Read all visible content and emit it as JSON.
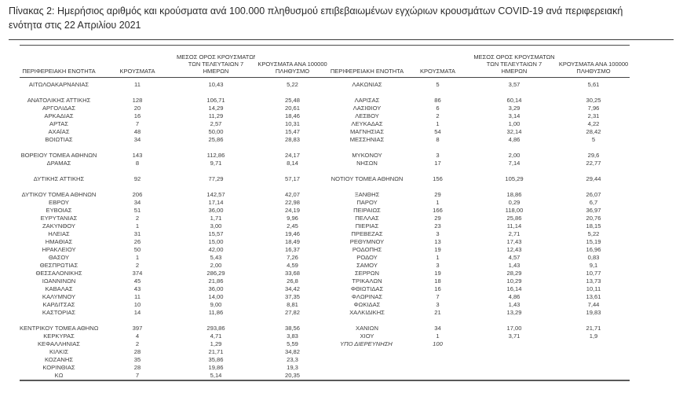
{
  "title": {
    "line1": "Πίνακας 2: Ημερήσιος αριθμός και κρούσματα ανά 100.000 πληθυσμού επιβεβαιωμένων εγχώριων κρουσμάτων COVID-19 ανά περιφερειακή",
    "line2": "ενότητα στις 22 Απριλίου 2021"
  },
  "table": {
    "columns": {
      "region": "ΠΕΡΙΦΕΡΕΙΑΚΗ ΕΝΟΤΗΤΑ",
      "cases": "ΚΡΟΥΣΜΑΤΑ",
      "avg7": [
        "ΜΕΣΟΣ ΟΡΟΣ ΚΡΟΥΣΜΑΤΩΝ",
        "ΤΩΝ ΤΕΛΕΥΤΑΙΩΝ 7",
        "ΗΜΕΡΩΝ"
      ],
      "per100k": [
        "ΚΡΟΥΣΜΑΤΑ ΑΝΑ 100000",
        "ΠΛΗΘΥΣΜΟ"
      ]
    },
    "rows": [
      {
        "left": [
          "ΑΙΤΩΛΟΑΚΑΡΝΑΝΙΑΣ",
          "11",
          "10,43",
          "5,22"
        ],
        "right": [
          "ΛΑΚΩΝΙΑΣ",
          "5",
          "3,57",
          "5,61"
        ]
      },
      {
        "left": [],
        "right": []
      },
      {
        "left": [
          "ΑΝΑΤΟΛΙΚΗΣ ΑΤΤΙΚΗΣ",
          "128",
          "106,71",
          "25,48"
        ],
        "right": [
          "ΛΑΡΙΣΑΣ",
          "86",
          "60,14",
          "30,25"
        ]
      },
      {
        "left": [
          "ΑΡΓΟΛΙΔΑΣ",
          "20",
          "14,29",
          "20,61"
        ],
        "right": [
          "ΛΑΣΙΘΙΟΥ",
          "6",
          "3,29",
          "7,96"
        ]
      },
      {
        "left": [
          "ΑΡΚΑΔΙΑΣ",
          "16",
          "11,29",
          "18,46"
        ],
        "right": [
          "ΛΕΣΒΟΥ",
          "2",
          "3,14",
          "2,31"
        ]
      },
      {
        "left": [
          "ΑΡΤΑΣ",
          "7",
          "2,57",
          "10,31"
        ],
        "right": [
          "ΛΕΥΚΑΔΑΣ",
          "1",
          "1,00",
          "4,22"
        ]
      },
      {
        "left": [
          "ΑΧΑΪΑΣ",
          "48",
          "50,00",
          "15,47"
        ],
        "right": [
          "ΜΑΓΝΗΣΙΑΣ",
          "54",
          "32,14",
          "28,42"
        ]
      },
      {
        "left": [
          "ΒΟΙΩΤΙΑΣ",
          "34",
          "25,86",
          "28,83"
        ],
        "right": [
          "ΜΕΣΣΗΝΙΑΣ",
          "8",
          "4,86",
          "5"
        ]
      },
      {
        "left": [],
        "right": []
      },
      {
        "left": [
          "ΒΟΡΕΙΟΥ ΤΟΜΕΑ ΑΘΗΝΩΝ",
          "143",
          "112,86",
          "24,17"
        ],
        "right": [
          "ΜΥΚΟΝΟΥ",
          "3",
          "2,00",
          "29,6"
        ]
      },
      {
        "left": [
          "ΔΡΑΜΑΣ",
          "8",
          "9,71",
          "8,14"
        ],
        "right": [
          "ΝΗΣΩΝ",
          "17",
          "7,14",
          "22,77"
        ]
      },
      {
        "left": [],
        "right": []
      },
      {
        "left": [
          "ΔΥΤΙΚΗΣ ΑΤΤΙΚΗΣ",
          "92",
          "77,29",
          "57,17"
        ],
        "right": [
          "ΝΟΤΙΟΥ ΤΟΜΕΑ ΑΘΗΝΩΝ",
          "156",
          "105,29",
          "29,44"
        ]
      },
      {
        "left": [],
        "right": []
      },
      {
        "left": [
          "ΔΥΤΙΚΟΥ ΤΟΜΕΑ ΑΘΗΝΩΝ",
          "206",
          "142,57",
          "42,07"
        ],
        "right": [
          "ΞΑΝΘΗΣ",
          "29",
          "18,86",
          "26,07"
        ]
      },
      {
        "left": [
          "ΕΒΡΟΥ",
          "34",
          "17,14",
          "22,98"
        ],
        "right": [
          "ΠΑΡΟΥ",
          "1",
          "0,29",
          "6,7"
        ]
      },
      {
        "left": [
          "ΕΥΒΟΙΑΣ",
          "51",
          "36,00",
          "24,19"
        ],
        "right": [
          "ΠΕΙΡΑΙΩΣ",
          "166",
          "118,00",
          "36,97"
        ]
      },
      {
        "left": [
          "ΕΥΡΥΤΑΝΙΑΣ",
          "2",
          "1,71",
          "9,96"
        ],
        "right": [
          "ΠΕΛΛΑΣ",
          "29",
          "25,86",
          "20,76"
        ]
      },
      {
        "left": [
          "ΖΑΚΥΝΘΟΥ",
          "1",
          "3,00",
          "2,45"
        ],
        "right": [
          "ΠΙΕΡΙΑΣ",
          "23",
          "11,14",
          "18,15"
        ]
      },
      {
        "left": [
          "ΗΛΕΙΑΣ",
          "31",
          "15,57",
          "19,46"
        ],
        "right": [
          "ΠΡΕΒΕΖΑΣ",
          "3",
          "2,71",
          "5,22"
        ]
      },
      {
        "left": [
          "ΗΜΑΘΙΑΣ",
          "26",
          "15,00",
          "18,49"
        ],
        "right": [
          "ΡΕΘΥΜΝΟΥ",
          "13",
          "17,43",
          "15,19"
        ]
      },
      {
        "left": [
          "ΗΡΑΚΛΕΙΟΥ",
          "50",
          "42,00",
          "16,37"
        ],
        "right": [
          "ΡΟΔΟΠΗΣ",
          "19",
          "12,43",
          "16,96"
        ]
      },
      {
        "left": [
          "ΘΑΣΟΥ",
          "1",
          "5,43",
          "7,26"
        ],
        "right": [
          "ΡΟΔΟΥ",
          "1",
          "4,57",
          "0,83"
        ]
      },
      {
        "left": [
          "ΘΕΣΠΡΩΤΙΑΣ",
          "2",
          "2,00",
          "4,59"
        ],
        "right": [
          "ΣΑΜΟΥ",
          "3",
          "1,43",
          "9,1"
        ]
      },
      {
        "left": [
          "ΘΕΣΣΑΛΟΝΙΚΗΣ",
          "374",
          "286,29",
          "33,68"
        ],
        "right": [
          "ΣΕΡΡΩΝ",
          "19",
          "28,29",
          "10,77"
        ]
      },
      {
        "left": [
          "ΙΩΑΝΝΙΝΩΝ",
          "45",
          "21,86",
          "26,8"
        ],
        "right": [
          "ΤΡΙΚΑΛΩΝ",
          "18",
          "10,29",
          "13,73"
        ]
      },
      {
        "left": [
          "ΚΑΒΑΛΑΣ",
          "43",
          "36,00",
          "34,42"
        ],
        "right": [
          "ΦΘΙΩΤΙΔΑΣ",
          "16",
          "16,14",
          "10,11"
        ]
      },
      {
        "left": [
          "ΚΑΛΥΜΝΟΥ",
          "11",
          "14,00",
          "37,35"
        ],
        "right": [
          "ΦΛΩΡΙΝΑΣ",
          "7",
          "4,86",
          "13,61"
        ]
      },
      {
        "left": [
          "ΚΑΡΔΙΤΣΑΣ",
          "10",
          "9,00",
          "8,81"
        ],
        "right": [
          "ΦΩΚΙΔΑΣ",
          "3",
          "1,43",
          "7,44"
        ]
      },
      {
        "left": [
          "ΚΑΣΤΟΡΙΑΣ",
          "14",
          "11,86",
          "27,82"
        ],
        "right": [
          "ΧΑΛΚΙΔΙΚΗΣ",
          "21",
          "13,29",
          "19,83"
        ]
      },
      {
        "left": [],
        "right": []
      },
      {
        "left": [
          "ΚΕΝΤΡΙΚΟΥ ΤΟΜΕΑ ΑΘΗΝΩΝ",
          "397",
          "293,86",
          "38,56"
        ],
        "right": [
          "ΧΑΝΙΩΝ",
          "34",
          "17,00",
          "21,71"
        ]
      },
      {
        "left": [
          "ΚΕΡΚΥΡΑΣ",
          "4",
          "4,71",
          "3,83"
        ],
        "right": [
          "ΧΙΟΥ",
          "1",
          "3,71",
          "1,9"
        ]
      },
      {
        "left": [
          "ΚΕΦΑΛΛΗΝΙΑΣ",
          "2",
          "1,29",
          "5,59"
        ],
        "right": [
          "ΥΠΟ ΔΙΕΡΕΥΝΗΣΗ",
          "100",
          "",
          ""
        ],
        "right_italic": true
      },
      {
        "left": [
          "ΚΙΛΚΙΣ",
          "28",
          "21,71",
          "34,82"
        ],
        "right": []
      },
      {
        "left": [
          "ΚΟΖΑΝΗΣ",
          "35",
          "35,86",
          "23,3"
        ],
        "right": []
      },
      {
        "left": [
          "ΚΟΡΙΝΘΙΑΣ",
          "28",
          "19,86",
          "19,3"
        ],
        "right": []
      },
      {
        "left": [
          "ΚΩ",
          "7",
          "5,14",
          "20,35"
        ],
        "right": []
      }
    ]
  }
}
